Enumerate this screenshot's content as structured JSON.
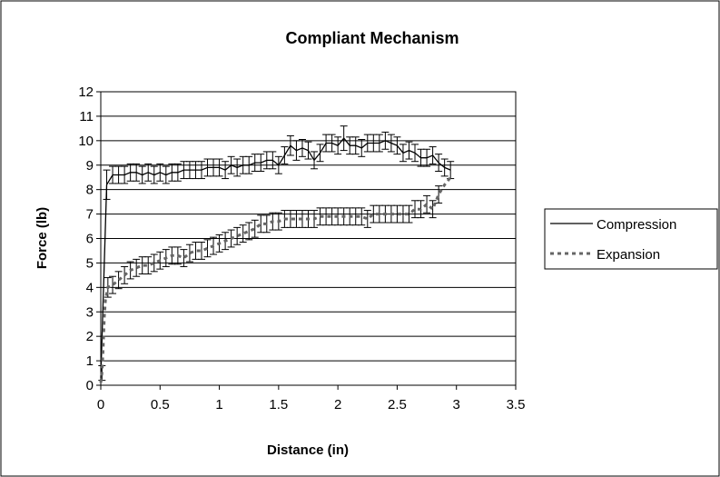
{
  "chart_data": {
    "type": "line",
    "title": "Compliant Mechanism",
    "xlabel": "Distance (in)",
    "ylabel": "Force (lb)",
    "xlim": [
      0,
      3.5
    ],
    "ylim": [
      0,
      12
    ],
    "xticks": [
      "0",
      "0.5",
      "1",
      "1.5",
      "2",
      "2.5",
      "3",
      "3.5"
    ],
    "yticks": [
      "0",
      "1",
      "2",
      "3",
      "4",
      "5",
      "6",
      "7",
      "8",
      "9",
      "10",
      "11",
      "12"
    ],
    "grid": "horizontal",
    "legend_position": "right",
    "series": [
      {
        "name": "Compression",
        "style": "solid",
        "color": "#000000",
        "x": [
          0,
          0.05,
          0.1,
          0.15,
          0.2,
          0.25,
          0.3,
          0.35,
          0.4,
          0.45,
          0.5,
          0.55,
          0.6,
          0.65,
          0.7,
          0.75,
          0.8,
          0.85,
          0.9,
          0.95,
          1.0,
          1.05,
          1.1,
          1.15,
          1.2,
          1.25,
          1.3,
          1.35,
          1.4,
          1.45,
          1.5,
          1.55,
          1.6,
          1.65,
          1.7,
          1.75,
          1.8,
          1.85,
          1.9,
          1.95,
          2.0,
          2.05,
          2.1,
          2.15,
          2.2,
          2.25,
          2.3,
          2.35,
          2.4,
          2.45,
          2.5,
          2.55,
          2.6,
          2.65,
          2.7,
          2.75,
          2.8,
          2.85,
          2.9,
          2.95
        ],
        "y": [
          0.3,
          8.2,
          8.6,
          8.6,
          8.6,
          8.7,
          8.7,
          8.6,
          8.7,
          8.6,
          8.7,
          8.6,
          8.7,
          8.7,
          8.8,
          8.8,
          8.8,
          8.8,
          8.9,
          8.9,
          8.9,
          8.8,
          9.0,
          8.9,
          9.0,
          9.0,
          9.1,
          9.1,
          9.2,
          9.2,
          9.0,
          9.4,
          9.8,
          9.6,
          9.7,
          9.6,
          9.2,
          9.5,
          9.9,
          9.9,
          9.8,
          10.1,
          9.8,
          9.8,
          9.7,
          9.9,
          9.9,
          9.9,
          10.0,
          9.9,
          9.8,
          9.5,
          9.6,
          9.5,
          9.3,
          9.3,
          9.4,
          9.1,
          8.9,
          8.8
        ],
        "error": [
          0,
          0.6,
          0.35,
          0.35,
          0.35,
          0.35,
          0.35,
          0.35,
          0.35,
          0.35,
          0.35,
          0.35,
          0.35,
          0.35,
          0.35,
          0.35,
          0.35,
          0.35,
          0.35,
          0.35,
          0.35,
          0.35,
          0.35,
          0.35,
          0.35,
          0.35,
          0.35,
          0.35,
          0.35,
          0.35,
          0.35,
          0.35,
          0.4,
          0.4,
          0.35,
          0.35,
          0.35,
          0.35,
          0.35,
          0.35,
          0.35,
          0.5,
          0.35,
          0.35,
          0.35,
          0.35,
          0.35,
          0.35,
          0.35,
          0.35,
          0.35,
          0.35,
          0.35,
          0.35,
          0.35,
          0.35,
          0.35,
          0.35,
          0.35,
          0.35
        ]
      },
      {
        "name": "Expansion",
        "style": "dashed",
        "color": "#666666",
        "x": [
          0,
          0.01,
          0.02,
          0.03,
          0.04,
          0.06,
          0.1,
          0.15,
          0.2,
          0.25,
          0.3,
          0.35,
          0.4,
          0.45,
          0.5,
          0.55,
          0.6,
          0.65,
          0.7,
          0.75,
          0.8,
          0.85,
          0.9,
          0.95,
          1.0,
          1.05,
          1.1,
          1.15,
          1.2,
          1.25,
          1.3,
          1.35,
          1.4,
          1.45,
          1.5,
          1.55,
          1.6,
          1.65,
          1.7,
          1.75,
          1.8,
          1.85,
          1.9,
          1.95,
          2.0,
          2.05,
          2.1,
          2.15,
          2.2,
          2.25,
          2.3,
          2.35,
          2.4,
          2.45,
          2.5,
          2.55,
          2.6,
          2.65,
          2.7,
          2.75,
          2.8,
          2.85,
          2.9,
          2.95
        ],
        "y": [
          0.1,
          0.5,
          1.5,
          2.8,
          3.5,
          4.0,
          4.1,
          4.3,
          4.5,
          4.7,
          4.8,
          4.9,
          4.9,
          5.0,
          5.1,
          5.2,
          5.3,
          5.3,
          5.2,
          5.4,
          5.5,
          5.5,
          5.6,
          5.7,
          5.8,
          5.9,
          6.0,
          6.1,
          6.2,
          6.3,
          6.4,
          6.6,
          6.6,
          6.7,
          6.7,
          6.8,
          6.8,
          6.8,
          6.8,
          6.8,
          6.8,
          6.9,
          6.9,
          6.9,
          6.9,
          6.9,
          6.9,
          6.9,
          6.9,
          6.8,
          7.0,
          7.0,
          7.0,
          7.0,
          7.0,
          7.0,
          7.0,
          7.2,
          7.2,
          7.4,
          7.2,
          7.8,
          8.2,
          8.5
        ],
        "error": [
          0,
          0.3,
          0,
          0,
          0,
          0.4,
          0.35,
          0.35,
          0.35,
          0.35,
          0.35,
          0.35,
          0.35,
          0.35,
          0.35,
          0.35,
          0.35,
          0.35,
          0.35,
          0.35,
          0.35,
          0.35,
          0.35,
          0.35,
          0.35,
          0.35,
          0.35,
          0.35,
          0.35,
          0.35,
          0.35,
          0.35,
          0.35,
          0.35,
          0.35,
          0.35,
          0.35,
          0.35,
          0.35,
          0.35,
          0.35,
          0.35,
          0.35,
          0.35,
          0.35,
          0.35,
          0.35,
          0.35,
          0.35,
          0.35,
          0.35,
          0.35,
          0.35,
          0.35,
          0.35,
          0.35,
          0.35,
          0.35,
          0.35,
          0.35,
          0.35,
          0.35,
          0,
          0
        ]
      }
    ]
  }
}
